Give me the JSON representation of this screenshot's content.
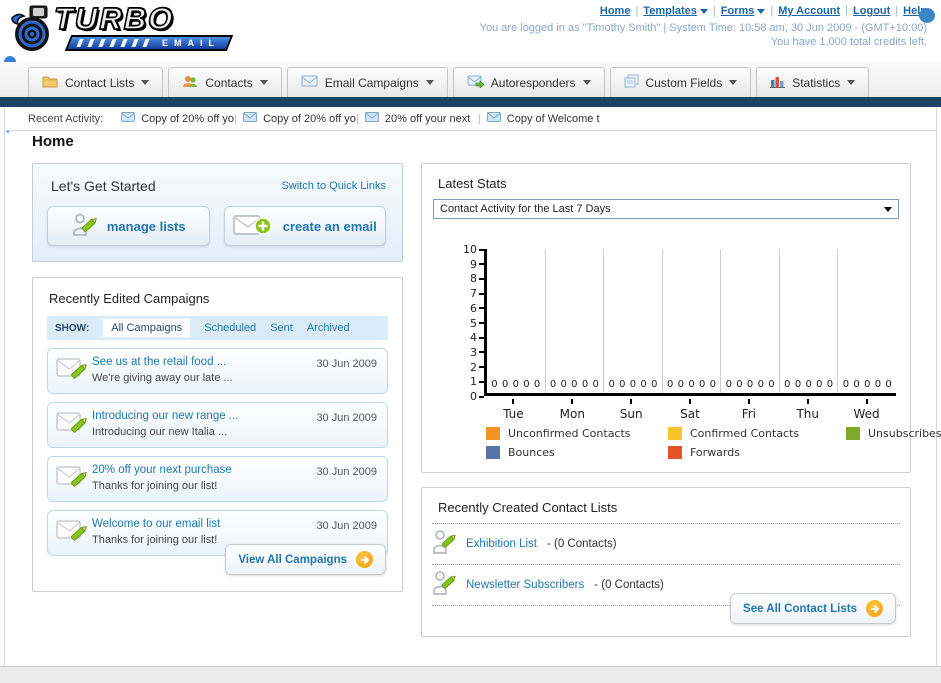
{
  "header": {
    "logo_line1": "TURBO",
    "logo_line2": "EMAIL",
    "links": [
      "Home",
      "Templates",
      "Forms",
      "My Account",
      "Logout",
      "Help"
    ],
    "login_info": "You are logged in as \"Timothy Smith\" | System Time: 10:58 am, 30 Jun 2009 - (GMT+10:00)",
    "credits_info": "You have 1,000 total credits left."
  },
  "nav": {
    "tabs": [
      {
        "label": "Contact Lists",
        "icon": "folder-icon"
      },
      {
        "label": "Contacts",
        "icon": "contacts-icon"
      },
      {
        "label": "Email Campaigns",
        "icon": "envelope-icon"
      },
      {
        "label": "Autoresponders",
        "icon": "envelope-arrow-icon"
      },
      {
        "label": "Custom Fields",
        "icon": "pages-icon"
      },
      {
        "label": "Statistics",
        "icon": "bar-chart-icon"
      }
    ]
  },
  "recent_activity": {
    "label": "Recent Activity:",
    "items": [
      "Copy of 20% off yo",
      "Copy of 20% off yo",
      "20% off your next",
      "Copy of Welcome to"
    ]
  },
  "page_title": "Home",
  "get_started": {
    "title": "Let's Get Started",
    "switch_link": "Switch to Quick Links",
    "manage_lists_label": "manage lists",
    "create_email_label": "create an email"
  },
  "campaigns": {
    "title": "Recently Edited Campaigns",
    "show_label": "SHOW:",
    "tabs": [
      "All Campaigns",
      "Scheduled",
      "Sent",
      "Archived"
    ],
    "active_tab": "All Campaigns",
    "items": [
      {
        "title": "See us at the retail food ...",
        "subtitle": "We're giving away our late ...",
        "date": "30 Jun 2009"
      },
      {
        "title": "Introducing our new range ...",
        "subtitle": "Introducing our new Italia ...",
        "date": "30 Jun 2009"
      },
      {
        "title": "20% off your next purchase",
        "subtitle": "Thanks for joining our list!",
        "date": "30 Jun 2009"
      },
      {
        "title": "Welcome to our email list",
        "subtitle": "Thanks for joining our list!",
        "date": "30 Jun 2009"
      }
    ],
    "view_all_label": "View All Campaigns"
  },
  "stats": {
    "title": "Latest Stats",
    "selector_value": "Contact Activity for the Last 7 Days",
    "chart_data": {
      "type": "bar",
      "title": "Contact Activity for the Last 7 Days",
      "categories": [
        "Tue",
        "Mon",
        "Sun",
        "Sat",
        "Fri",
        "Thu",
        "Wed"
      ],
      "series": [
        {
          "name": "Unconfirmed Contacts",
          "color": "#f39321",
          "values": [
            0,
            0,
            0,
            0,
            0,
            0,
            0
          ]
        },
        {
          "name": "Confirmed Contacts",
          "color": "#f8c42c",
          "values": [
            0,
            0,
            0,
            0,
            0,
            0,
            0
          ]
        },
        {
          "name": "Unsubscribes",
          "color": "#7fa928",
          "values": [
            0,
            0,
            0,
            0,
            0,
            0,
            0
          ]
        },
        {
          "name": "Bounces",
          "color": "#5873a8",
          "values": [
            0,
            0,
            0,
            0,
            0,
            0,
            0
          ]
        },
        {
          "name": "Forwards",
          "color": "#e6502a",
          "values": [
            0,
            0,
            0,
            0,
            0,
            0,
            0
          ]
        }
      ],
      "ylim": [
        0,
        10
      ],
      "yticks": [
        0,
        1,
        2,
        3,
        4,
        5,
        6,
        7,
        8,
        9,
        10
      ],
      "grid": "vertical",
      "legend_position": "bottom"
    }
  },
  "contact_lists": {
    "title": "Recently Created Contact Lists",
    "items": [
      {
        "name": "Exhibition List",
        "detail": "- (0 Contacts)"
      },
      {
        "name": "Newsletter Subscribers",
        "detail": "- (0 Contacts)"
      }
    ],
    "see_all_label": "See All Contact Lists"
  }
}
